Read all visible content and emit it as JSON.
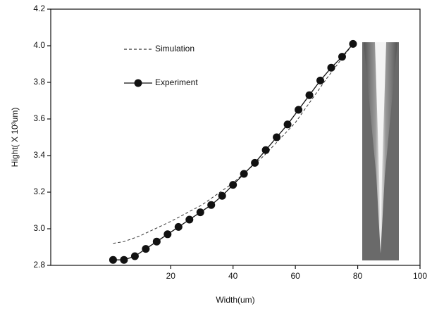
{
  "chart_data": {
    "type": "line",
    "x_label": "Width(um)",
    "y_label": "Hight( X 10³um)",
    "xlim": [
      -18.5,
      100
    ],
    "xticks": [
      20,
      40,
      60,
      80,
      100
    ],
    "ylim": [
      2.8,
      4.2
    ],
    "yticks": [
      2.8,
      {
        "value": 3,
        "label": "3.0"
      },
      3.2,
      3.4,
      3.6,
      3.8,
      {
        "value": 4,
        "label": "4.0"
      },
      4.2
    ],
    "legend": "upper left",
    "series": [
      {
        "name": "Simulation",
        "color": "#333333",
        "style": "dashed",
        "x": [
          1.5,
          5,
          10,
          20,
          30,
          40,
          50,
          60,
          70,
          78.5
        ],
        "values": [
          2.92,
          2.93,
          2.96,
          3.04,
          3.13,
          3.25,
          3.4,
          3.58,
          3.82,
          4.01
        ]
      },
      {
        "name": "Experiment",
        "color": "#111111",
        "style": "solid-marker",
        "x": [
          1.5,
          5,
          8.5,
          12,
          15.5,
          19,
          22.5,
          26,
          29.5,
          33,
          36.5,
          40,
          43.5,
          47,
          50.5,
          54,
          57.5,
          61,
          64.5,
          68,
          71.5,
          75,
          78.5
        ],
        "values": [
          2.83,
          2.83,
          2.85,
          2.89,
          2.93,
          2.97,
          3.01,
          3.05,
          3.09,
          3.13,
          3.18,
          3.24,
          3.3,
          3.36,
          3.43,
          3.5,
          3.57,
          3.65,
          3.73,
          3.81,
          3.88,
          3.94,
          4.01
        ]
      }
    ]
  }
}
